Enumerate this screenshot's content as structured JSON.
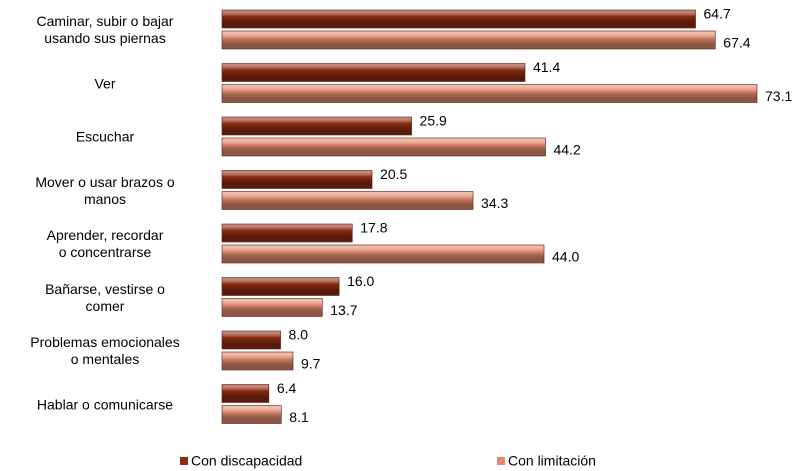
{
  "chart_data": {
    "type": "hbar",
    "categories": [
      "Caminar, subir o bajar\nusando sus piernas",
      "Ver",
      "Escuchar",
      "Mover o usar brazos o\nmanos",
      "Aprender, recordar\no concentrarse",
      "Bañarse, vestirse o\ncomer",
      "Problemas emocionales\no mentales",
      "Hablar o comunicarse"
    ],
    "series": [
      {
        "name": "Con discapacidad",
        "color": "#8e2c12",
        "values": [
          64.7,
          41.4,
          25.9,
          20.5,
          17.8,
          16.0,
          8.0,
          6.4
        ],
        "value_labels": [
          "64.7",
          "41.4",
          "25.9",
          "20.5",
          "17.8",
          "16.0",
          "8.0",
          "6.4"
        ]
      },
      {
        "name": "Con limitación",
        "color": "#e08a70",
        "values": [
          67.4,
          73.1,
          44.2,
          34.3,
          44.0,
          13.7,
          9.7,
          8.1
        ],
        "value_labels": [
          "67.4",
          "73.1",
          "44.2",
          "34.3",
          "44.0",
          "13.7",
          "9.7",
          "8.1"
        ]
      }
    ],
    "legend": "bottom"
  }
}
